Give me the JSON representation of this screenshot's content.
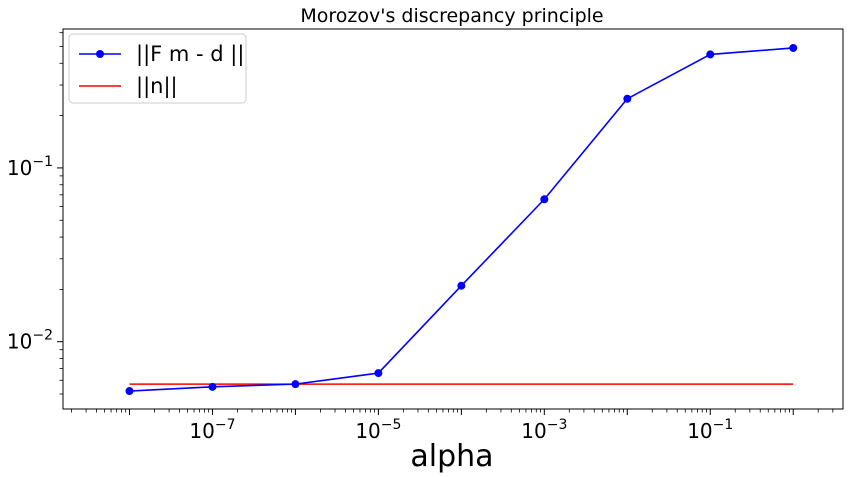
{
  "chart_data": {
    "type": "line",
    "title": "Morozov's discrepancy principle",
    "xlabel": "alpha",
    "ylabel": "",
    "xscale": "log",
    "yscale": "log",
    "xlim": [
      1.58e-09,
      3.98
    ],
    "ylim": [
      0.0041,
      0.63
    ],
    "grid": false,
    "legend_position": "top-left",
    "x_ticks": [
      {
        "value": 1e-07,
        "base": "10",
        "exp": "−7"
      },
      {
        "value": 1e-05,
        "base": "10",
        "exp": "−5"
      },
      {
        "value": 0.001,
        "base": "10",
        "exp": "−3"
      },
      {
        "value": 0.1,
        "base": "10",
        "exp": "−1"
      }
    ],
    "y_ticks": [
      {
        "value": 0.01,
        "base": "10",
        "exp": "−2"
      },
      {
        "value": 0.1,
        "base": "10",
        "exp": "−1"
      }
    ],
    "series": [
      {
        "name": "||F m - d ||",
        "color": "#0000ff",
        "marker": "circle",
        "x": [
          1e-08,
          1e-07,
          1e-06,
          1e-05,
          0.0001,
          0.001,
          0.01,
          0.1,
          1
        ],
        "y": [
          0.0052,
          0.0055,
          0.0057,
          0.0066,
          0.021,
          0.066,
          0.25,
          0.45,
          0.49
        ]
      },
      {
        "name": "||n||",
        "color": "#ff0000",
        "marker": "none",
        "x": [
          1e-08,
          1
        ],
        "y": [
          0.0057,
          0.0057
        ]
      }
    ]
  }
}
